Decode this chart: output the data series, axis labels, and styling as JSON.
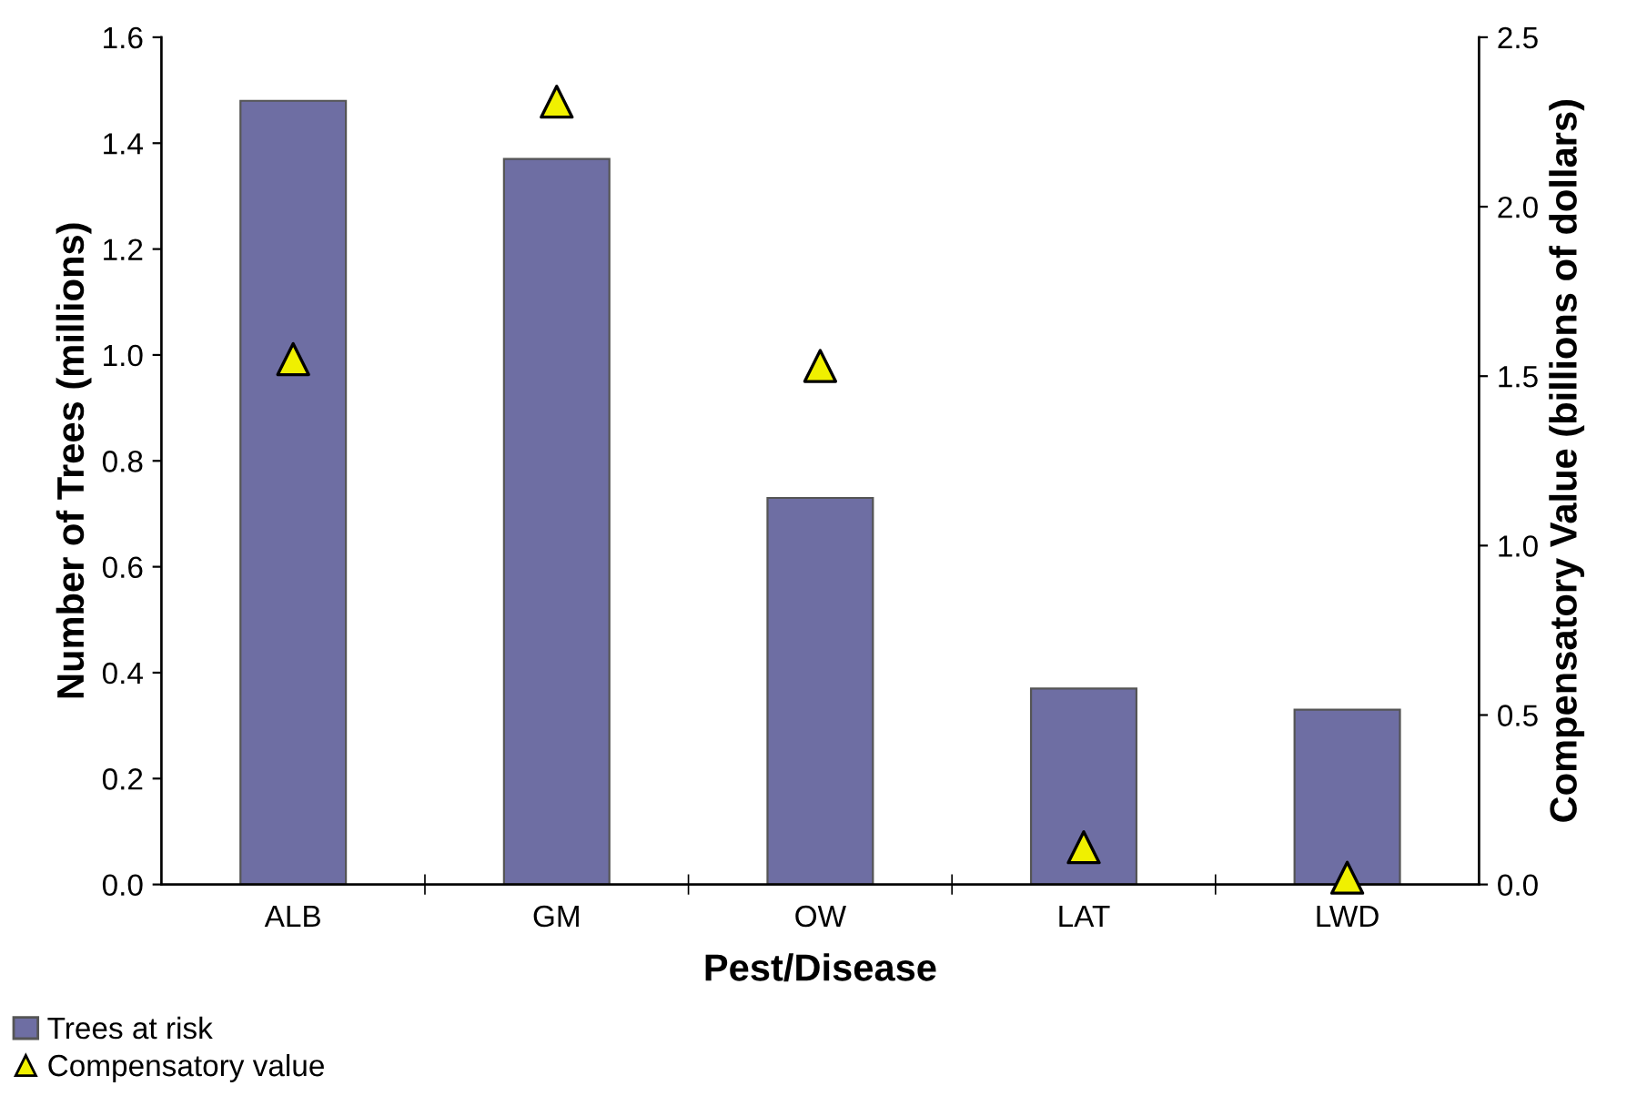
{
  "chart_data": {
    "type": "bar",
    "xlabel": "Pest/Disease",
    "ylabel": "Number of Trees (millions)",
    "y2label": "Compensatory Value (billions of dollars)",
    "categories": [
      "ALB",
      "GM",
      "OW",
      "LAT",
      "LWD"
    ],
    "series": [
      {
        "name": "Trees at risk",
        "color": "#6e6ea3",
        "values": [
          1.48,
          1.37,
          0.73,
          0.37,
          0.33
        ]
      },
      {
        "name": "Compensatory value",
        "type": "scatter",
        "axis": "y2",
        "color": "#f0f000",
        "marker": "triangle",
        "values": [
          1.55,
          2.31,
          1.53,
          0.11,
          0.02
        ]
      }
    ],
    "ylim": [
      0,
      1.6
    ],
    "yticks": [
      {
        "value": 0,
        "label": "0.0"
      },
      0.2,
      0.4,
      0.6,
      0.8,
      {
        "value": 1,
        "label": "1.0"
      },
      1.2,
      1.4,
      1.6
    ],
    "y2lim": [
      0,
      2.5
    ],
    "y2ticks": [
      {
        "value": 0,
        "label": "0.0"
      },
      0.5,
      {
        "value": 1,
        "label": "1.0"
      },
      1.5,
      {
        "value": 2,
        "label": "2.0"
      },
      2.5
    ],
    "grid": false,
    "legend": "bottom left"
  }
}
